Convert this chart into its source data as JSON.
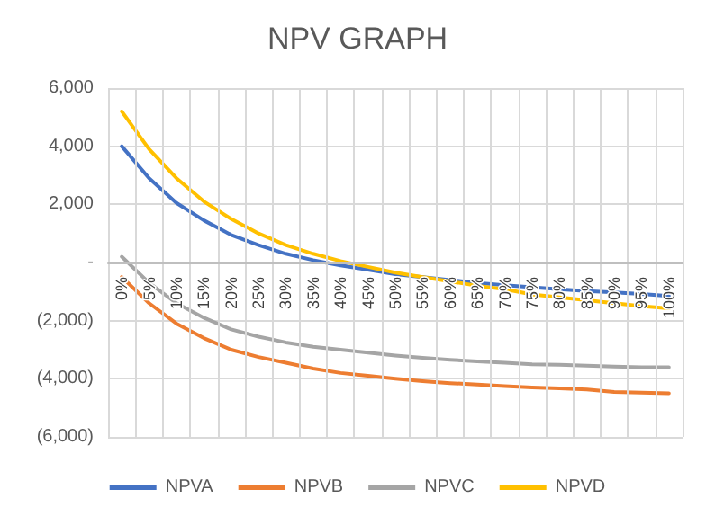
{
  "chart_data": {
    "type": "line",
    "title": "NPV GRAPH",
    "categories": [
      "0%",
      "5%",
      "10%",
      "15%",
      "20%",
      "25%",
      "30%",
      "35%",
      "40%",
      "45%",
      "50%",
      "55%",
      "60%",
      "65%",
      "70%",
      "75%",
      "80%",
      "85%",
      "90%",
      "95%",
      "100%"
    ],
    "series": [
      {
        "name": "NPVA",
        "color": "#4472c4",
        "values": [
          4000,
          2900,
          2050,
          1450,
          950,
          600,
          300,
          80,
          -100,
          -250,
          -400,
          -500,
          -600,
          -700,
          -780,
          -850,
          -920,
          -980,
          -1030,
          -1080,
          -1150
        ]
      },
      {
        "name": "NPVB",
        "color": "#ed7d31",
        "values": [
          -500,
          -1400,
          -2100,
          -2600,
          -3000,
          -3250,
          -3450,
          -3650,
          -3800,
          -3900,
          -4000,
          -4080,
          -4150,
          -4200,
          -4250,
          -4300,
          -4330,
          -4370,
          -4450,
          -4480,
          -4500
        ]
      },
      {
        "name": "NPVC",
        "color": "#a5a5a5",
        "values": [
          200,
          -700,
          -1400,
          -1900,
          -2300,
          -2550,
          -2750,
          -2900,
          -3000,
          -3100,
          -3200,
          -3280,
          -3350,
          -3400,
          -3450,
          -3500,
          -3520,
          -3550,
          -3580,
          -3600,
          -3600
        ]
      },
      {
        "name": "NPVD",
        "color": "#ffc000",
        "values": [
          5200,
          3900,
          2900,
          2100,
          1500,
          1000,
          600,
          300,
          50,
          -150,
          -350,
          -500,
          -650,
          -800,
          -920,
          -1100,
          -1200,
          -1300,
          -1400,
          -1500,
          -1580
        ]
      }
    ],
    "ylim": [
      -6000,
      6000
    ],
    "yticks": [
      {
        "value": -6000,
        "label": "(6,000)"
      },
      {
        "value": -4000,
        "label": "(4,000)"
      },
      {
        "value": -2000,
        "label": "(2,000)"
      },
      {
        "value": 0,
        "label": "-"
      },
      {
        "value": 2000,
        "label": "2,000"
      },
      {
        "value": 4000,
        "label": "4,000"
      },
      {
        "value": 6000,
        "label": "6,000"
      }
    ],
    "grid": true,
    "legend": "bottom",
    "marker": "none",
    "line_style": "solid"
  }
}
